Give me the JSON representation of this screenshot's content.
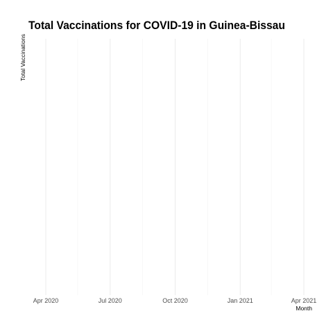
{
  "chart_data": {
    "type": "line",
    "title": "Total Vaccinations for COVID-19 in Guinea-Bissau",
    "xlabel": "Month",
    "ylabel": "Total Vaccinations",
    "x_ticks": [
      "2020-04-01",
      "2020-07-01",
      "2020-10-01",
      "2021-01-01",
      "2021-04-01"
    ],
    "x_tick_labels": [
      "Apr 2020",
      "Jul 2020",
      "Oct 2020",
      "Jan 2021",
      "Apr 2021"
    ],
    "xlim": [
      "2020-03-07",
      "2021-04-01"
    ],
    "x_minor_ticks": [
      "2020-05-16",
      "2020-08-16",
      "2020-11-16",
      "2021-02-14"
    ],
    "series": [],
    "grid": true,
    "legend": "none",
    "colors": {
      "grid_major": "#ebebeb",
      "grid_minor": "#f5f5f5",
      "text": "#4d4d4d",
      "title": "#000000"
    }
  }
}
